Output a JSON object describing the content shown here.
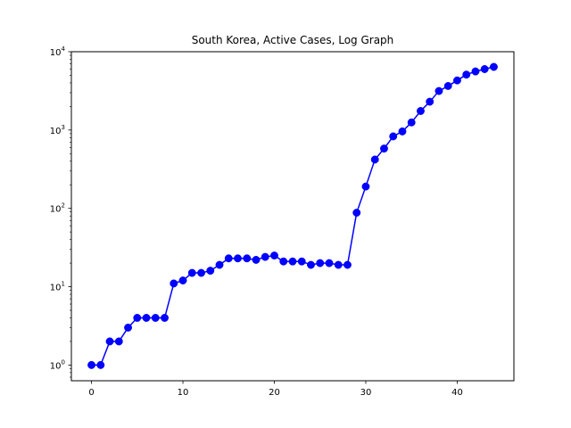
{
  "chart_data": {
    "type": "line",
    "title": "South Korea, Active Cases, Log Graph",
    "xlabel": "",
    "ylabel": "",
    "yscale": "log",
    "xlim": [
      -2.2,
      46.2
    ],
    "ylim": [
      0.63,
      10000
    ],
    "x_ticks": [
      0,
      10,
      20,
      30,
      40
    ],
    "y_ticks": [
      1,
      10,
      100,
      1000,
      10000
    ],
    "y_tick_labels": [
      {
        "base": "10",
        "exp": "0"
      },
      {
        "base": "10",
        "exp": "1"
      },
      {
        "base": "10",
        "exp": "2"
      },
      {
        "base": "10",
        "exp": "3"
      },
      {
        "base": "10",
        "exp": "4"
      }
    ],
    "grid": false,
    "legend": "none",
    "series": [
      {
        "color": "#0000ff",
        "marker": "circle",
        "x": [
          0,
          1,
          2,
          3,
          4,
          5,
          6,
          7,
          8,
          9,
          10,
          11,
          12,
          13,
          14,
          15,
          16,
          17,
          18,
          19,
          20,
          21,
          22,
          23,
          24,
          25,
          26,
          27,
          28,
          29,
          30,
          31,
          32,
          33,
          34,
          35,
          36,
          37,
          38,
          39,
          40,
          41,
          42,
          43,
          44
        ],
        "values": [
          1,
          1,
          2,
          2,
          3,
          4,
          4,
          4,
          4,
          11,
          12,
          15,
          15,
          16,
          19,
          23,
          23,
          23,
          22,
          24,
          25,
          21,
          21,
          21,
          19,
          20,
          20,
          19,
          19,
          88,
          190,
          420,
          580,
          830,
          960,
          1250,
          1750,
          2300,
          3150,
          3650,
          4300,
          5100,
          5600,
          6000,
          6400
        ]
      }
    ]
  }
}
